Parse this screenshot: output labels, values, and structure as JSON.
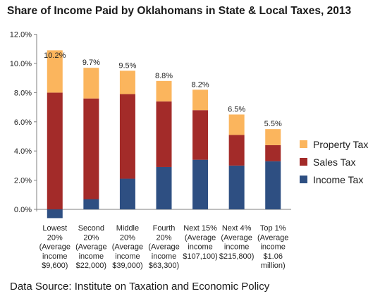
{
  "chart_data": {
    "type": "bar",
    "stacked": true,
    "title": "Share of Income Paid by Oklahomans in State & Local Taxes, 2013",
    "source": "Data Source: Institute on Taxation and Economic Policy",
    "ylim": [
      -1,
      12
    ],
    "yticks": [
      "0.0%",
      "2.0%",
      "4.0%",
      "6.0%",
      "8.0%",
      "10.0%",
      "12.0%"
    ],
    "ytick_values": [
      0,
      2,
      4,
      6,
      8,
      10,
      12
    ],
    "categories": [
      [
        "Lowest",
        "20%",
        "(Average",
        "income",
        "$9,600)"
      ],
      [
        "Second",
        "20%",
        "(Average",
        "income",
        "$22,000)"
      ],
      [
        "Middle",
        "20%",
        "(Average",
        "income",
        "$39,000)"
      ],
      [
        "Fourth",
        "20%",
        "(Average",
        "income",
        "$63,300)"
      ],
      [
        "Next 15%",
        "(Average",
        "income",
        "$107,100)"
      ],
      [
        "Next 4%",
        "(Average",
        "income",
        "$215,800)"
      ],
      [
        "Top 1%",
        "(Average",
        "income",
        "$1.06",
        "million)"
      ]
    ],
    "series": [
      {
        "name": "Income Tax",
        "color": "#2e4f82",
        "values": [
          -0.6,
          0.7,
          2.1,
          2.9,
          3.4,
          3.0,
          3.3
        ]
      },
      {
        "name": "Sales Tax",
        "color": "#a32b29",
        "values": [
          8.0,
          6.9,
          5.8,
          4.5,
          3.4,
          2.1,
          1.1
        ]
      },
      {
        "name": "Property Tax",
        "color": "#fbb55d",
        "values": [
          2.9,
          2.1,
          1.6,
          1.4,
          1.4,
          1.4,
          1.1
        ]
      }
    ],
    "totals": [
      "10.2%",
      "9.7%",
      "9.5%",
      "8.8%",
      "8.2%",
      "6.5%",
      "5.5%"
    ],
    "total_values": [
      10.2,
      9.7,
      9.5,
      8.8,
      8.2,
      6.5,
      5.5
    ],
    "legend": [
      "Property Tax",
      "Sales Tax",
      "Income Tax"
    ],
    "legend_position": "right",
    "grid": false
  }
}
